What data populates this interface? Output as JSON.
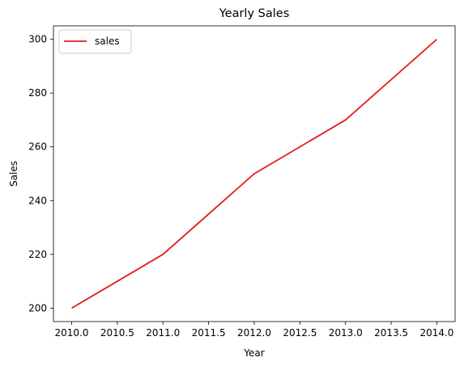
{
  "chart_data": {
    "type": "line",
    "title": "Yearly Sales",
    "xlabel": "Year",
    "ylabel": "Sales",
    "x": [
      2010,
      2011,
      2012,
      2013,
      2014
    ],
    "series": [
      {
        "name": "sales",
        "values": [
          200,
          220,
          250,
          270,
          300
        ],
        "color": "#e41a1c"
      }
    ],
    "xlim": [
      2009.8,
      2014.2
    ],
    "ylim": [
      195,
      305
    ],
    "xticks": [
      "2010.0",
      "2010.5",
      "2011.0",
      "2011.5",
      "2012.0",
      "2012.5",
      "2013.0",
      "2013.5",
      "2014.0"
    ],
    "yticks": [
      "200",
      "220",
      "240",
      "260",
      "280",
      "300"
    ],
    "grid": false,
    "legend_position": "top-left"
  }
}
